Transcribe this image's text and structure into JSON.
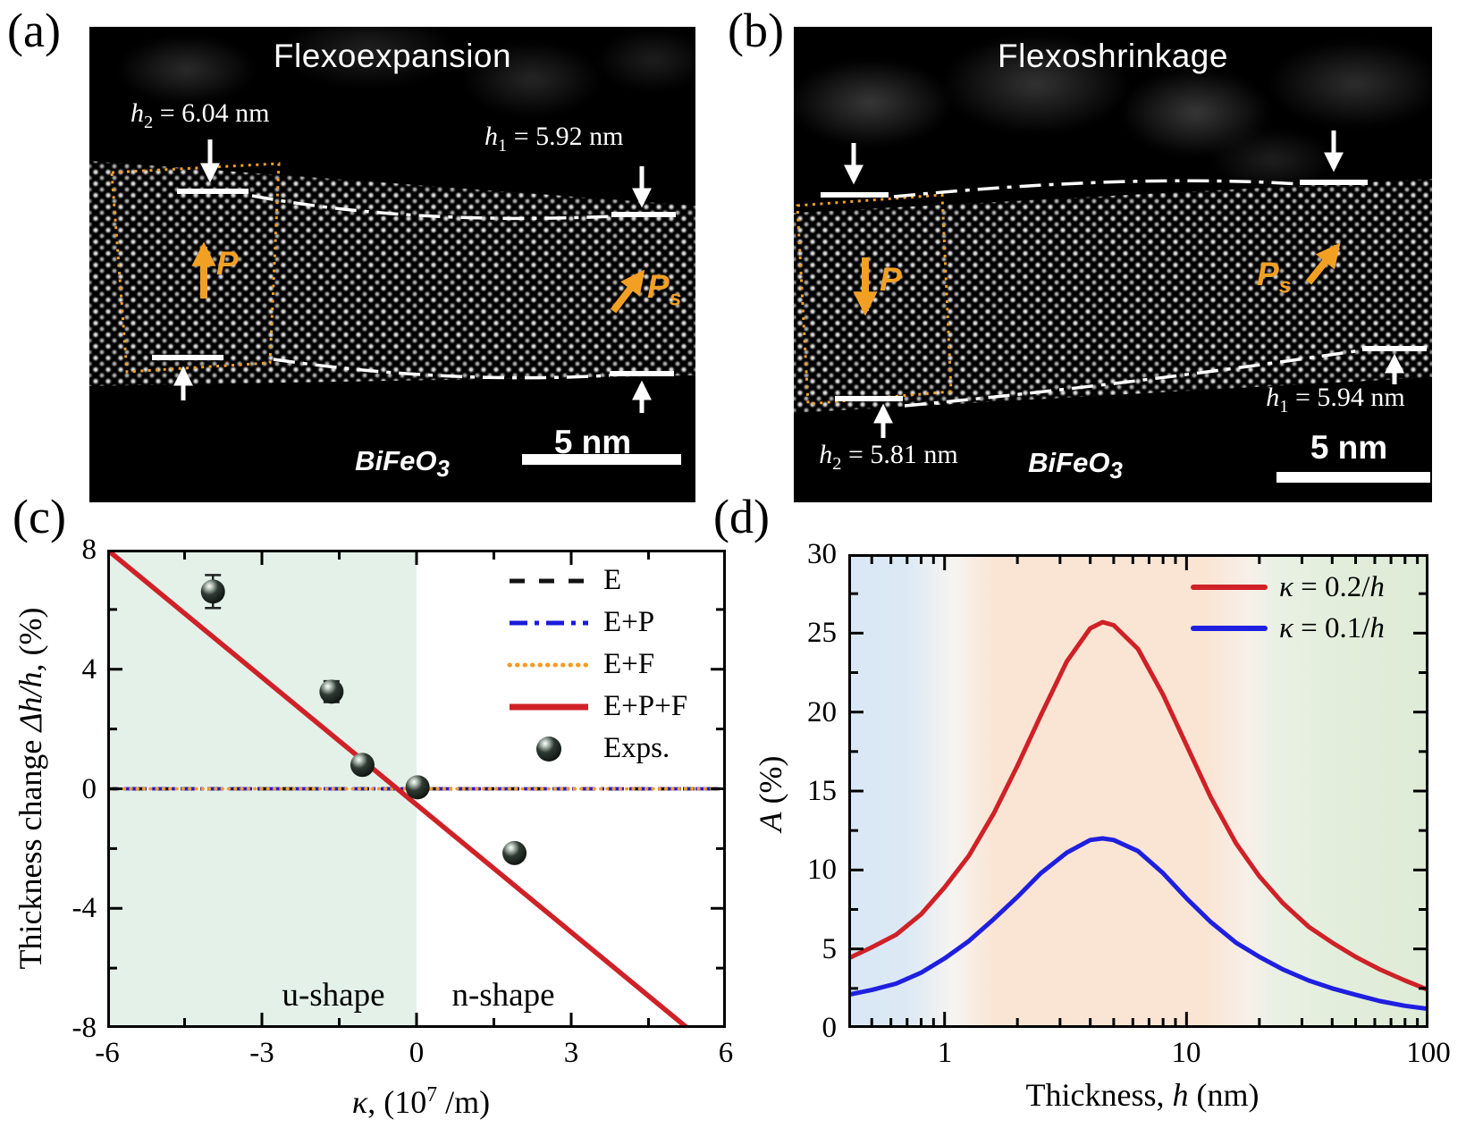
{
  "figure": {
    "panels": {
      "a": {
        "label": "(a)",
        "title": "Flexoexpansion",
        "h2_parts": [
          {
            "t": "h",
            "s": "i"
          },
          {
            "t": "2",
            "s": "sub"
          },
          {
            "t": " = 6.04 nm"
          }
        ],
        "h1_parts": [
          {
            "t": "h",
            "s": "i"
          },
          {
            "t": "1",
            "s": "sub"
          },
          {
            "t": " = 5.92 nm"
          }
        ],
        "p_label": "P",
        "ps_parts": [
          {
            "t": "P"
          },
          {
            "t": "s",
            "s": "sub"
          }
        ],
        "material_parts": [
          {
            "t": "BiFeO"
          },
          {
            "t": "3",
            "s": "sub"
          }
        ],
        "scalebar_label": "5 nm"
      },
      "b": {
        "label": "(b)",
        "title": "Flexoshrinkage",
        "h2_parts": [
          {
            "t": "h",
            "s": "i"
          },
          {
            "t": "2",
            "s": "sub"
          },
          {
            "t": " = 5.81 nm"
          }
        ],
        "h1_parts": [
          {
            "t": "h",
            "s": "i"
          },
          {
            "t": "1",
            "s": "sub"
          },
          {
            "t": " = 5.94 nm"
          }
        ],
        "p_label": "P",
        "ps_parts": [
          {
            "t": "P"
          },
          {
            "t": "s",
            "s": "sub"
          }
        ],
        "material_parts": [
          {
            "t": "BiFeO"
          },
          {
            "t": "3",
            "s": "sub"
          }
        ],
        "scalebar_label": "5 nm"
      },
      "c": {
        "label": "(c)",
        "ylabel_parts": [
          {
            "t": "Thickness change "
          },
          {
            "t": "Δh/h",
            "s": "i"
          },
          {
            "t": ", (%)"
          }
        ],
        "xlabel_parts": [
          {
            "t": "κ",
            "s": "i"
          },
          {
            "t": ", (10"
          },
          {
            "t": "7",
            "s": "sup"
          },
          {
            "t": " /m)"
          }
        ],
        "region_labels": {
          "u": "u-shape",
          "n": "n-shape"
        }
      },
      "d": {
        "label": "(d)",
        "ylabel_parts": [
          {
            "t": "A",
            "s": "i"
          },
          {
            "t": " (%)"
          }
        ],
        "xlabel_parts": [
          {
            "t": "Thickness, "
          },
          {
            "t": "h",
            "s": "i"
          },
          {
            "t": " (nm)"
          }
        ],
        "legend": [
          {
            "parts": [
              {
                "t": "κ",
                "s": "i"
              },
              {
                "t": " = 0.2/"
              },
              {
                "t": "h",
                "s": "i"
              }
            ]
          },
          {
            "parts": [
              {
                "t": "κ",
                "s": "i"
              },
              {
                "t": " = 0.1/"
              },
              {
                "t": "h",
                "s": "i"
              }
            ]
          }
        ]
      }
    }
  },
  "chart_data": [
    {
      "panel": "c",
      "type": "line+scatter",
      "xlabel": "κ, (10^7 /m)",
      "ylabel": "Thickness change Δh/h, (%)",
      "xlim": [
        -6,
        6
      ],
      "ylim": [
        -8,
        8
      ],
      "xticks": [
        -6,
        -3,
        0,
        3,
        6
      ],
      "xminor": [
        -4.5,
        -1.5,
        1.5,
        4.5
      ],
      "yticks": [
        8,
        4,
        0,
        -4,
        -8
      ],
      "yminor": [
        6,
        2,
        -2,
        -6
      ],
      "grid": false,
      "legend_position": "top-right",
      "regions": [
        {
          "label": "u-shape",
          "xfrom": -6,
          "xto": 0,
          "color": "#e3f1e9"
        },
        {
          "label": "n-shape",
          "xfrom": 0,
          "xto": 6,
          "color": "#ffffff"
        }
      ],
      "series": [
        {
          "name": "E",
          "type": "hline",
          "y": 0,
          "color": "#111111",
          "dash": "dashed"
        },
        {
          "name": "E+P",
          "type": "hline",
          "y": 0,
          "color": "#1b1bdd",
          "dash": "dashdot"
        },
        {
          "name": "E+F",
          "type": "hline",
          "y": 0,
          "color": "#f79b28",
          "dash": "dotted"
        },
        {
          "name": "E+P+F",
          "type": "line",
          "color": "#cf2127",
          "points": [
            [
              -6,
              8
            ],
            [
              5.25,
              -8
            ]
          ]
        },
        {
          "name": "Exps.",
          "type": "scatter",
          "color": "#10160f",
          "points": [
            [
              -3.95,
              6.6
            ],
            [
              -1.65,
              3.25
            ],
            [
              -1.05,
              0.8
            ],
            [
              0.02,
              0.05
            ],
            [
              1.9,
              -2.15
            ]
          ],
          "yerr": [
            0.55,
            0.35,
            0.2,
            0.12,
            0.12
          ]
        }
      ]
    },
    {
      "panel": "d",
      "type": "line",
      "xscale": "log",
      "xlabel": "Thickness, h (nm)",
      "ylabel": "A (%)",
      "xlim": [
        0.4,
        100
      ],
      "ylim": [
        0,
        30
      ],
      "xticks": [
        1,
        10,
        100
      ],
      "yticks": [
        0,
        5,
        10,
        15,
        20,
        25,
        30
      ],
      "grid": false,
      "legend_position": "top-right",
      "bg_bands": [
        {
          "color": "#d9e8f6",
          "xfrom": 0.4,
          "xto": 1.2
        },
        {
          "color": "#fae5d4",
          "xfrom": 1.4,
          "xto": 15
        },
        {
          "color": "#e2eedb",
          "xfrom": 24,
          "xto": 100
        }
      ],
      "series": [
        {
          "name": "κ = 0.2/h",
          "color": "#cf2127",
          "points": [
            [
              0.4,
              4.4
            ],
            [
              0.5,
              5.1
            ],
            [
              0.63,
              5.9
            ],
            [
              0.8,
              7.2
            ],
            [
              1.0,
              8.9
            ],
            [
              1.26,
              10.9
            ],
            [
              1.6,
              13.6
            ],
            [
              2.0,
              16.6
            ],
            [
              2.5,
              19.8
            ],
            [
              3.2,
              23.2
            ],
            [
              4.0,
              25.3
            ],
            [
              4.5,
              25.7
            ],
            [
              5.0,
              25.5
            ],
            [
              6.3,
              24.0
            ],
            [
              8.0,
              21.1
            ],
            [
              10,
              17.9
            ],
            [
              12.6,
              14.6
            ],
            [
              16,
              11.7
            ],
            [
              20,
              9.6
            ],
            [
              25,
              7.9
            ],
            [
              32,
              6.4
            ],
            [
              40,
              5.4
            ],
            [
              50,
              4.5
            ],
            [
              63,
              3.7
            ],
            [
              80,
              3.0
            ],
            [
              100,
              2.4
            ]
          ]
        },
        {
          "name": "κ = 0.1/h",
          "color": "#1f1fe0",
          "points": [
            [
              0.4,
              2.1
            ],
            [
              0.5,
              2.4
            ],
            [
              0.63,
              2.8
            ],
            [
              0.8,
              3.5
            ],
            [
              1.0,
              4.4
            ],
            [
              1.26,
              5.5
            ],
            [
              1.6,
              6.9
            ],
            [
              2.0,
              8.3
            ],
            [
              2.5,
              9.8
            ],
            [
              3.2,
              11.1
            ],
            [
              4.0,
              11.9
            ],
            [
              4.5,
              12.0
            ],
            [
              5.0,
              11.9
            ],
            [
              6.3,
              11.2
            ],
            [
              8.0,
              9.8
            ],
            [
              10,
              8.2
            ],
            [
              12.6,
              6.7
            ],
            [
              16,
              5.4
            ],
            [
              20,
              4.5
            ],
            [
              25,
              3.7
            ],
            [
              32,
              3.0
            ],
            [
              40,
              2.5
            ],
            [
              50,
              2.1
            ],
            [
              63,
              1.7
            ],
            [
              80,
              1.4
            ],
            [
              100,
              1.2
            ]
          ]
        }
      ]
    }
  ]
}
